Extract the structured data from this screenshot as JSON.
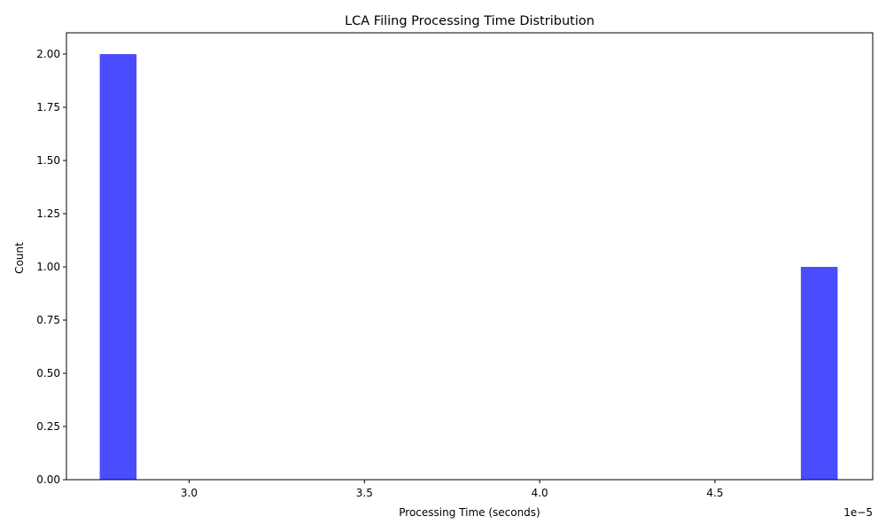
{
  "chart_data": {
    "type": "bar",
    "title": "LCA Filing Processing Time Distribution",
    "xlabel": "Processing Time (seconds)",
    "ylabel": "Count",
    "x_offset_text": "1e−5",
    "bar_color": "#0000ff",
    "bar_opacity": 0.7,
    "xlim": [
      2.65,
      4.95
    ],
    "ylim": [
      0,
      2.1
    ],
    "x_ticks": [
      3.0,
      3.5,
      4.0,
      4.5
    ],
    "x_tick_labels": [
      "3.0",
      "3.5",
      "4.0",
      "4.5"
    ],
    "y_ticks": [
      0,
      0.25,
      0.5,
      0.75,
      1.0,
      1.25,
      1.5,
      1.75,
      2.0
    ],
    "y_tick_labels": [
      "0.00",
      "0.25",
      "0.50",
      "0.75",
      "1.00",
      "1.25",
      "1.50",
      "1.75",
      "2.00"
    ],
    "bars": [
      {
        "x0": 2.745,
        "x1": 2.85,
        "count": 2
      },
      {
        "x0": 4.745,
        "x1": 4.85,
        "count": 1
      }
    ],
    "grid": false
  }
}
